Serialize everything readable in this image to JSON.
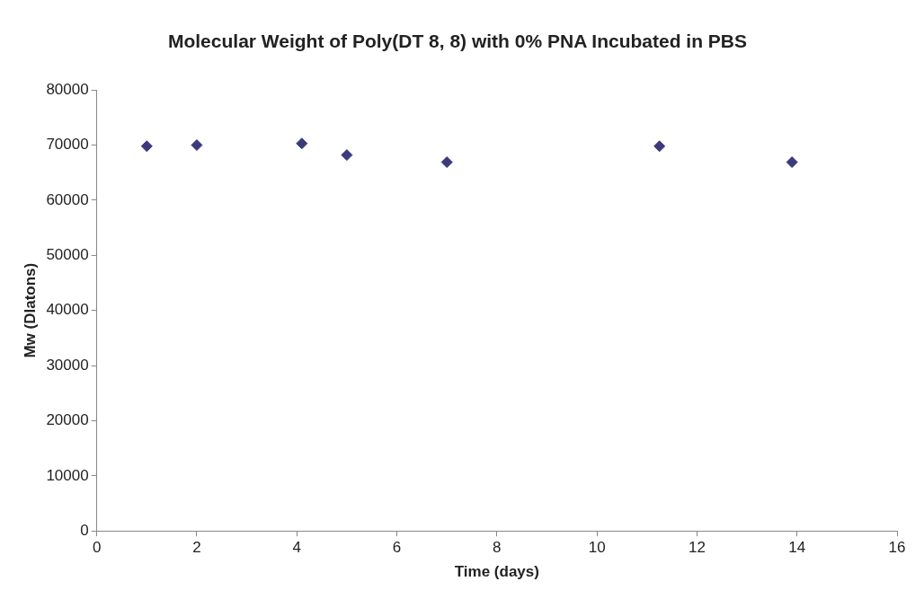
{
  "chart_data": {
    "type": "scatter",
    "title": "Molecular Weight of Poly(DT 8, 8) with 0% PNA Incubated in PBS",
    "xlabel": "Time (days)",
    "ylabel": "Mw (Dlatons)",
    "x": [
      1,
      2,
      4.1,
      5,
      7,
      11.25,
      13.9
    ],
    "series": [
      {
        "color": "#3b3a7a",
        "values": [
          69800,
          70000,
          70300,
          68200,
          66900,
          69800,
          66900
        ]
      }
    ],
    "xlim": [
      0,
      16
    ],
    "xticks": [
      0,
      2,
      4,
      6,
      8,
      10,
      12,
      14,
      16
    ],
    "ylim": [
      0,
      80000
    ],
    "yticks": [
      0,
      10000,
      20000,
      30000,
      40000,
      50000,
      60000,
      70000,
      80000
    ],
    "grid": false,
    "legend": false,
    "marker": "diamond"
  }
}
